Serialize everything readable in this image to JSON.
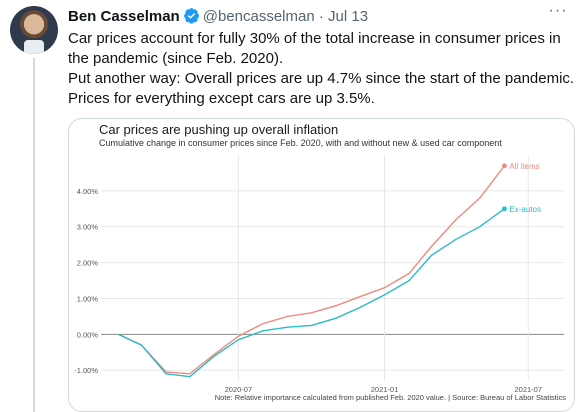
{
  "tweet": {
    "author_name": "Ben Casselman",
    "handle": "@bencasselman",
    "separator": "·",
    "time": "Jul 13",
    "more_icon": "more-horizontal-icon",
    "verified_icon": "verified-badge-icon",
    "text_lines": [
      "Car prices account for fully 30% of the total increase in consumer prices in",
      "the pandemic (since Feb. 2020).",
      "Put another way: Overall prices are up 4.7% since the start of the pandemic.",
      "Prices for everything except cars are up 3.5%."
    ]
  },
  "colors": {
    "all_items": "#f08a7e",
    "ex_autos": "#2bbcc8",
    "grid": "#e8e8e8",
    "zero_line": "#8a8a8a",
    "verified": "#1d9bf0"
  },
  "chart_data": {
    "type": "line",
    "title": "Car prices are pushing up overall inflation",
    "subtitle": "Cumulative change in consumer prices since Feb. 2020, with and without new & used car component",
    "note": "Note: Relative importance calculated from published Feb. 2020 value. | Source: Bureau of Labor Statistics",
    "x_ticks": [
      "2020-07",
      "2021-01",
      "2021-07"
    ],
    "y_ticks": [
      "4.00%",
      "3.00%",
      "2.00%",
      "1.00%",
      "0.00%",
      "-1.00%"
    ],
    "y_tick_values": [
      4,
      3,
      2,
      1,
      0,
      -1
    ],
    "ylim": [
      -1.3,
      5.0
    ],
    "x_dates": [
      "2020-02",
      "2020-03",
      "2020-04",
      "2020-05",
      "2020-06",
      "2020-07",
      "2020-08",
      "2020-09",
      "2020-10",
      "2020-11",
      "2020-12",
      "2021-01",
      "2021-02",
      "2021-03",
      "2021-04",
      "2021-05",
      "2021-06"
    ],
    "xlim": [
      "2020-01-10",
      "2021-08-15"
    ],
    "series": [
      {
        "name": "All items",
        "values": [
          0.0,
          -0.3,
          -1.05,
          -1.1,
          -0.55,
          -0.05,
          0.3,
          0.5,
          0.6,
          0.8,
          1.05,
          1.3,
          1.7,
          2.45,
          3.2,
          3.8,
          4.7
        ]
      },
      {
        "name": "Ex-autos",
        "values": [
          0.0,
          -0.3,
          -1.1,
          -1.18,
          -0.6,
          -0.15,
          0.1,
          0.2,
          0.25,
          0.45,
          0.75,
          1.1,
          1.5,
          2.2,
          2.65,
          3.0,
          3.5
        ]
      }
    ]
  }
}
